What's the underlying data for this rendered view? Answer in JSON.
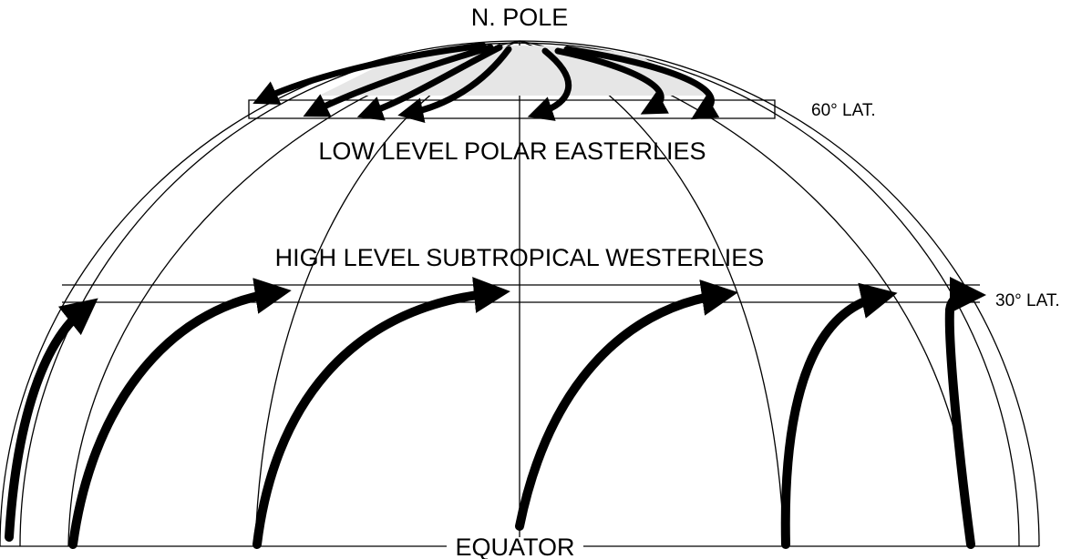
{
  "labels": {
    "pole": "N. POLE",
    "lat60": "60° LAT.",
    "easterlies": "LOW LEVEL POLAR EASTERLIES",
    "westerlies": "HIGH LEVEL SUBTROPICAL WESTERLIES",
    "lat30": "30° LAT.",
    "equator": "EQUATOR"
  }
}
